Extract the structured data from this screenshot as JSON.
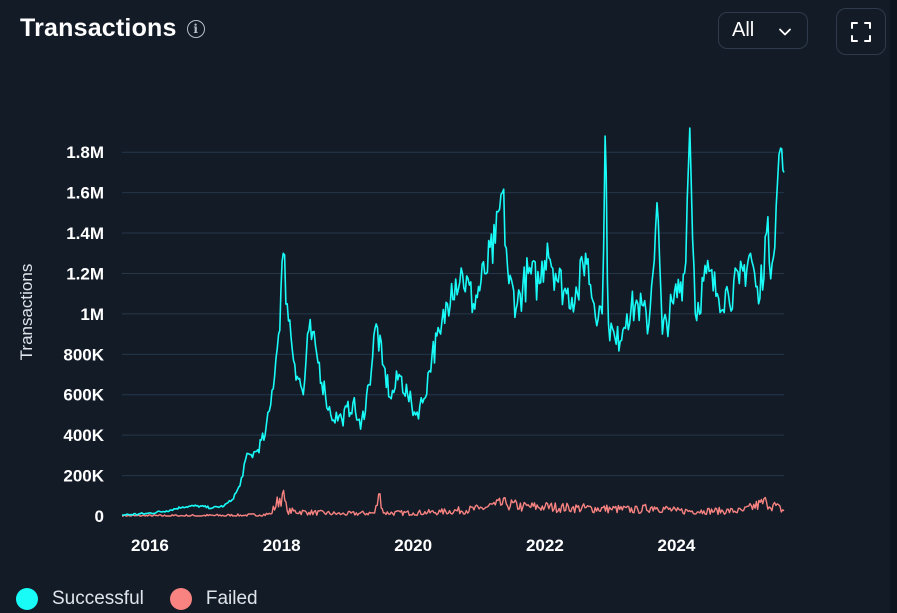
{
  "header": {
    "title": "Transactions",
    "info_icon": "info-icon"
  },
  "controls": {
    "range_value": "All",
    "range_icon": "chevron-down-icon",
    "fullscreen_icon": "expand-icon"
  },
  "colors": {
    "background": "#131b27",
    "grid": "#25364a",
    "successful": "#19fbf7",
    "failed": "#f88380",
    "axis_text": "#ffffff"
  },
  "chart_data": {
    "type": "line",
    "title": "Transactions",
    "ylabel": "Transactions",
    "xlabel": "",
    "xlim": [
      "2015-07-30",
      "2025-08-20"
    ],
    "ylim": [
      0,
      1900000
    ],
    "x_ticks": [
      "2016",
      "2018",
      "2020",
      "2022",
      "2024"
    ],
    "y_ticks": [
      "0",
      "200K",
      "400K",
      "600K",
      "800K",
      "1M",
      "1.2M",
      "1.4M",
      "1.6M",
      "1.8M"
    ],
    "y_tick_values": [
      0,
      200000,
      400000,
      600000,
      800000,
      1000000,
      1200000,
      1400000,
      1600000,
      1800000
    ],
    "grid": true,
    "legend_position": "bottom-left",
    "series": [
      {
        "name": "Successful",
        "color": "#19fbf7",
        "points": [
          [
            "2015-07-30",
            5000
          ],
          [
            "2015-12-15",
            12000
          ],
          [
            "2016-04-01",
            25000
          ],
          [
            "2016-07-01",
            45000
          ],
          [
            "2016-09-15",
            50000
          ],
          [
            "2016-12-15",
            40000
          ],
          [
            "2017-02-15",
            50000
          ],
          [
            "2017-04-01",
            80000
          ],
          [
            "2017-05-15",
            150000
          ],
          [
            "2017-06-15",
            280000
          ],
          [
            "2017-08-15",
            320000
          ],
          [
            "2017-10-01",
            400000
          ],
          [
            "2017-11-01",
            550000
          ],
          [
            "2017-12-15",
            900000
          ],
          [
            "2018-01-10",
            1300000
          ],
          [
            "2018-02-01",
            1050000
          ],
          [
            "2018-03-15",
            750000
          ],
          [
            "2018-05-01",
            600000
          ],
          [
            "2018-06-01",
            920000
          ],
          [
            "2018-07-15",
            800000
          ],
          [
            "2018-09-01",
            600000
          ],
          [
            "2018-10-01",
            500000
          ],
          [
            "2018-12-01",
            480000
          ],
          [
            "2019-02-01",
            560000
          ],
          [
            "2019-03-15",
            430000
          ],
          [
            "2019-05-01",
            650000
          ],
          [
            "2019-06-10",
            950000
          ],
          [
            "2019-07-15",
            750000
          ],
          [
            "2019-09-01",
            580000
          ],
          [
            "2019-10-15",
            700000
          ],
          [
            "2019-12-01",
            600000
          ],
          [
            "2020-01-15",
            500000
          ],
          [
            "2020-03-01",
            580000
          ],
          [
            "2020-04-15",
            800000
          ],
          [
            "2020-06-01",
            900000
          ],
          [
            "2020-08-01",
            1150000
          ],
          [
            "2020-10-01",
            1200000
          ],
          [
            "2020-12-01",
            1050000
          ],
          [
            "2021-02-01",
            1200000
          ],
          [
            "2021-04-01",
            1350000
          ],
          [
            "2021-05-10",
            1600000
          ],
          [
            "2021-06-15",
            1150000
          ],
          [
            "2021-08-01",
            1050000
          ],
          [
            "2021-10-01",
            1200000
          ],
          [
            "2021-12-01",
            1150000
          ],
          [
            "2022-01-15",
            1350000
          ],
          [
            "2022-03-01",
            1200000
          ],
          [
            "2022-05-01",
            1100000
          ],
          [
            "2022-07-01",
            1100000
          ],
          [
            "2022-08-15",
            1300000
          ],
          [
            "2022-10-01",
            1050000
          ],
          [
            "2022-11-15",
            1000000
          ],
          [
            "2022-12-01",
            1880000
          ],
          [
            "2022-12-20",
            950000
          ],
          [
            "2023-02-01",
            850000
          ],
          [
            "2023-04-01",
            1000000
          ],
          [
            "2023-06-01",
            1050000
          ],
          [
            "2023-08-01",
            950000
          ],
          [
            "2023-09-15",
            1550000
          ],
          [
            "2023-10-15",
            900000
          ],
          [
            "2023-12-15",
            1050000
          ],
          [
            "2024-02-15",
            1200000
          ],
          [
            "2024-03-15",
            1920000
          ],
          [
            "2024-04-15",
            1000000
          ],
          [
            "2024-06-15",
            1200000
          ],
          [
            "2024-08-15",
            1100000
          ],
          [
            "2024-10-15",
            1100000
          ],
          [
            "2024-12-15",
            1150000
          ],
          [
            "2025-02-15",
            1300000
          ],
          [
            "2025-04-01",
            1050000
          ],
          [
            "2025-05-15",
            1400000
          ],
          [
            "2025-06-15",
            1250000
          ],
          [
            "2025-07-15",
            1650000
          ],
          [
            "2025-08-01",
            1820000
          ],
          [
            "2025-08-20",
            1700000
          ]
        ]
      },
      {
        "name": "Failed",
        "color": "#f88380",
        "points": [
          [
            "2015-07-30",
            0
          ],
          [
            "2016-06-01",
            1000
          ],
          [
            "2017-06-01",
            3000
          ],
          [
            "2017-09-01",
            5000
          ],
          [
            "2017-11-01",
            10000
          ],
          [
            "2018-01-05",
            110000
          ],
          [
            "2018-02-01",
            25000
          ],
          [
            "2018-06-01",
            18000
          ],
          [
            "2018-12-01",
            10000
          ],
          [
            "2019-06-01",
            15000
          ],
          [
            "2019-07-01",
            110000
          ],
          [
            "2019-07-20",
            15000
          ],
          [
            "2020-01-01",
            15000
          ],
          [
            "2020-06-01",
            20000
          ],
          [
            "2021-01-01",
            35000
          ],
          [
            "2021-04-01",
            55000
          ],
          [
            "2021-06-01",
            60000
          ],
          [
            "2021-09-01",
            45000
          ],
          [
            "2022-01-01",
            45000
          ],
          [
            "2022-06-01",
            40000
          ],
          [
            "2023-01-01",
            35000
          ],
          [
            "2023-06-01",
            30000
          ],
          [
            "2023-09-01",
            45000
          ],
          [
            "2024-01-01",
            25000
          ],
          [
            "2024-06-01",
            25000
          ],
          [
            "2025-01-01",
            25000
          ],
          [
            "2025-05-15",
            70000
          ],
          [
            "2025-08-20",
            25000
          ]
        ]
      }
    ]
  },
  "legend": [
    {
      "label": "Successful",
      "color": "#19fbf7"
    },
    {
      "label": "Failed",
      "color": "#f88380"
    }
  ]
}
